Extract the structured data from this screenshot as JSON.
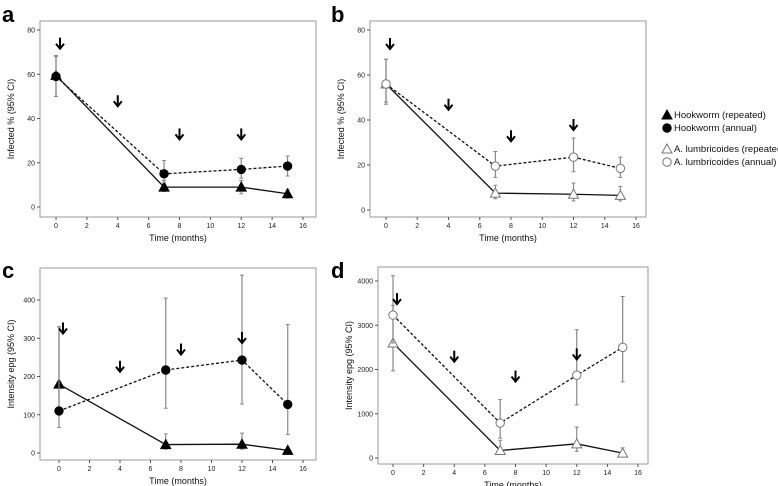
{
  "legend": {
    "items": [
      {
        "label": "Hookworm (repeated)",
        "marker": "triangle",
        "fill": "#000000"
      },
      {
        "label": "Hookworm (annual)",
        "marker": "circle",
        "fill": "#000000"
      },
      {
        "label": "A. lumbricoides (repeated)",
        "marker": "triangle",
        "fill": "none"
      },
      {
        "label": "A. lumbricoides (annual)",
        "marker": "circle",
        "fill": "none"
      }
    ]
  },
  "chart_data": [
    {
      "panel": "a",
      "type": "line",
      "xlabel": "Time (months)",
      "ylabel": "Infected % (95% CI)",
      "xlim": [
        0,
        16
      ],
      "xticks": [
        0,
        2,
        4,
        6,
        8,
        10,
        12,
        14,
        16
      ],
      "ylim": [
        0,
        80
      ],
      "yticks": [
        0,
        20,
        40,
        60,
        80
      ],
      "arrows_x": [
        0,
        4,
        8,
        12
      ],
      "arrows_y": [
        72,
        46,
        31,
        31
      ],
      "series": [
        {
          "legend_index": 0,
          "style": "solid",
          "marker": "triangle",
          "fill": "#000000",
          "x": [
            0,
            7,
            12,
            15
          ],
          "y": [
            59.5,
            9,
            9,
            6
          ],
          "ci_low": [
            50,
            7,
            6,
            4
          ],
          "ci_high": [
            68,
            12,
            12,
            8
          ]
        },
        {
          "legend_index": 1,
          "style": "dashed",
          "marker": "circle",
          "fill": "#000000",
          "x": [
            0,
            7,
            12,
            15
          ],
          "y": [
            59,
            15,
            17,
            18.5
          ],
          "ci_low": [
            50,
            11,
            13,
            14
          ],
          "ci_high": [
            68.5,
            21,
            22,
            23
          ]
        }
      ]
    },
    {
      "panel": "b",
      "type": "line",
      "xlabel": "Time (months)",
      "ylabel": "Infected % (95% CI)",
      "xlim": [
        0,
        16
      ],
      "xticks": [
        0,
        2,
        4,
        6,
        8,
        10,
        12,
        14,
        16
      ],
      "ylim": [
        0,
        80
      ],
      "yticks": [
        0,
        20,
        40,
        60,
        80
      ],
      "arrows_x": [
        0,
        4,
        8,
        12
      ],
      "arrows_y": [
        72,
        45,
        31,
        36
      ],
      "series": [
        {
          "legend_index": 2,
          "style": "solid",
          "marker": "triangle",
          "fill": "none",
          "x": [
            0,
            7,
            12,
            15
          ],
          "y": [
            56,
            7.5,
            7,
            6.5
          ],
          "ci_low": [
            47,
            5,
            4,
            4
          ],
          "ci_high": [
            67,
            11,
            12,
            10.5
          ]
        },
        {
          "legend_index": 3,
          "style": "dashed",
          "marker": "circle",
          "fill": "none",
          "x": [
            0,
            7,
            12,
            15
          ],
          "y": [
            56,
            19.5,
            23.5,
            18.5
          ],
          "ci_low": [
            48,
            14.5,
            17,
            14.5
          ],
          "ci_high": [
            67,
            26,
            32,
            23.5
          ]
        }
      ]
    },
    {
      "panel": "c",
      "type": "line",
      "xlabel": "Time (months)",
      "ylabel": "Intensity epg (95% CI)",
      "xlim": [
        0,
        16
      ],
      "xticks": [
        0,
        2,
        4,
        6,
        8,
        10,
        12,
        14,
        16
      ],
      "ylim": [
        0,
        450
      ],
      "yticks": [
        0,
        100,
        200,
        300,
        400
      ],
      "arrows_x": [
        0,
        4,
        8,
        12
      ],
      "arrows_y": [
        315,
        215,
        260,
        290
      ],
      "series": [
        {
          "legend_index": 0,
          "style": "solid",
          "marker": "triangle",
          "fill": "#000000",
          "x": [
            0,
            7,
            12,
            15
          ],
          "y": [
            180,
            22,
            23,
            7
          ],
          "ci_low": [
            100,
            10,
            10,
            3
          ],
          "ci_high": [
            330,
            50,
            52,
            12
          ]
        },
        {
          "legend_index": 1,
          "style": "dashed",
          "marker": "circle",
          "fill": "#000000",
          "x": [
            0,
            7,
            12,
            15
          ],
          "y": [
            110,
            217,
            243,
            127
          ],
          "ci_low": [
            67,
            117,
            128,
            48
          ],
          "ci_high": [
            330,
            405,
            465,
            336
          ]
        }
      ]
    },
    {
      "panel": "d",
      "type": "line",
      "xlabel": "Time (months)",
      "ylabel": "Intensity epg (95% CI)",
      "xlim": [
        0,
        16
      ],
      "xticks": [
        0,
        2,
        4,
        6,
        8,
        10,
        12,
        14,
        16
      ],
      "ylim": [
        0,
        4200
      ],
      "yticks": [
        0,
        1000,
        2000,
        3000,
        4000
      ],
      "arrows_x": [
        0,
        4,
        8,
        12
      ],
      "arrows_y": [
        3500,
        2200,
        1750,
        2250
      ],
      "series": [
        {
          "legend_index": 2,
          "style": "solid",
          "marker": "triangle",
          "fill": "none",
          "x": [
            0,
            7,
            12,
            15
          ],
          "y": [
            2600,
            170,
            320,
            110
          ],
          "ci_low": [
            1970,
            80,
            150,
            50
          ],
          "ci_high": [
            3450,
            400,
            700,
            230
          ]
        },
        {
          "legend_index": 3,
          "style": "dashed",
          "marker": "circle",
          "fill": "none",
          "x": [
            0,
            7,
            12,
            15
          ],
          "y": [
            3230,
            790,
            1870,
            2500
          ],
          "ci_low": [
            2600,
            450,
            1200,
            1720
          ],
          "ci_high": [
            4120,
            1320,
            2900,
            3650
          ]
        }
      ]
    }
  ]
}
